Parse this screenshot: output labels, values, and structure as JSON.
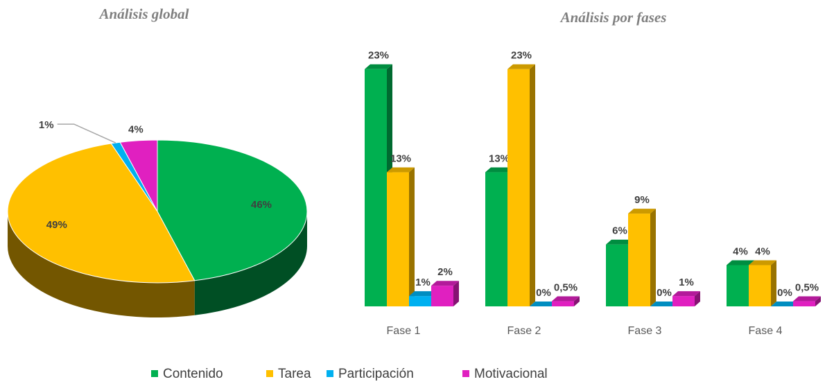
{
  "chart_data": [
    {
      "type": "pie",
      "title": "Análisis global",
      "values": [
        46,
        49,
        1,
        4
      ],
      "value_labels": [
        "46%",
        "49%",
        "1%",
        "4%"
      ],
      "colors": [
        "#00b050",
        "#ffc000",
        "#00b0f0",
        "#e020c0"
      ]
    },
    {
      "type": "bar",
      "title": "Análisis por fases",
      "categories": [
        "Fase 1",
        "Fase 2",
        "Fase 3",
        "Fase 4"
      ],
      "ylim": [
        0,
        25
      ],
      "series": [
        {
          "name": "Contenido",
          "color": "#00b050",
          "values": [
            23,
            13,
            6,
            4
          ],
          "value_labels": [
            "23%",
            "13%",
            "6%",
            "4%"
          ]
        },
        {
          "name": "Tarea",
          "color": "#ffc000",
          "values": [
            13,
            23,
            9,
            4
          ],
          "value_labels": [
            "13%",
            "23%",
            "9%",
            "4%"
          ]
        },
        {
          "name": "Participación",
          "color": "#00b0f0",
          "values": [
            1,
            0,
            0,
            0
          ],
          "value_labels": [
            "1%",
            "0%",
            "0%",
            "0%"
          ]
        },
        {
          "name": "Motivacional",
          "color": "#e020c0",
          "values": [
            2,
            0.5,
            1,
            0.5
          ],
          "value_labels": [
            "2%",
            "0,5%",
            "1%",
            "0,5%"
          ]
        }
      ]
    }
  ]
}
